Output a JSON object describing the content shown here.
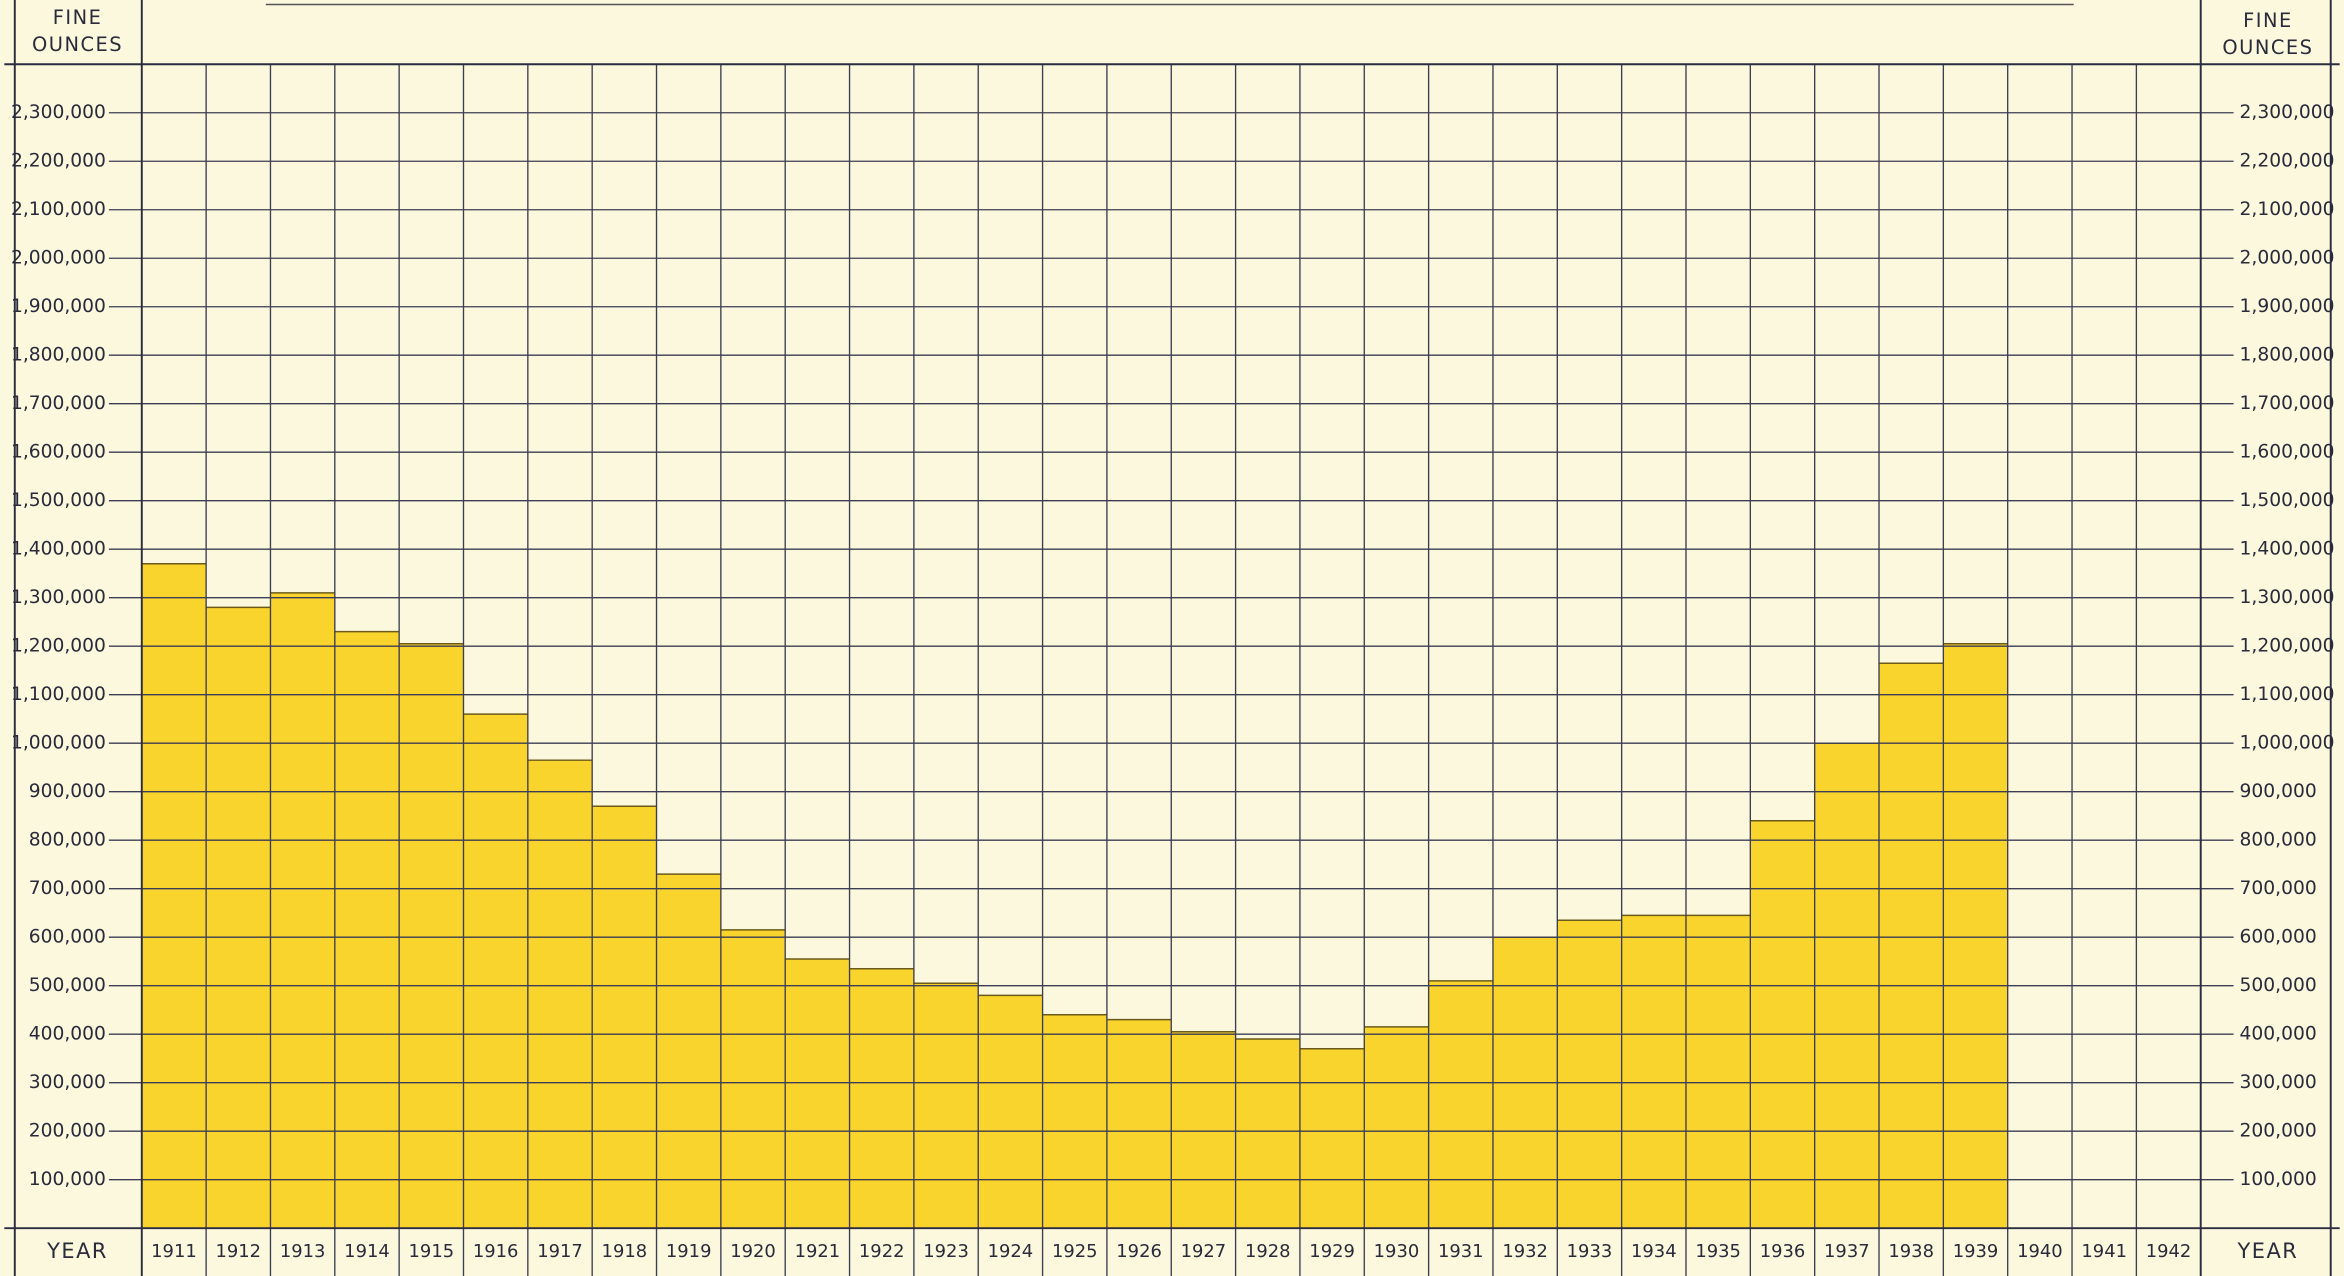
{
  "chart_data": {
    "type": "bar",
    "y_label": "FINE OUNCES",
    "x_label": "YEAR",
    "categories": [
      "1911",
      "1912",
      "1913",
      "1914",
      "1915",
      "1916",
      "1917",
      "1918",
      "1919",
      "1920",
      "1921",
      "1922",
      "1923",
      "1924",
      "1925",
      "1926",
      "1927",
      "1928",
      "1929",
      "1930",
      "1931",
      "1932",
      "1933",
      "1934",
      "1935",
      "1936",
      "1937",
      "1938",
      "1939",
      "1940",
      "1941",
      "1942"
    ],
    "values": [
      1370000,
      1280000,
      1310000,
      1230000,
      1205000,
      1060000,
      965000,
      870000,
      730000,
      615000,
      555000,
      535000,
      505000,
      480000,
      440000,
      430000,
      405000,
      390000,
      370000,
      415000,
      510000,
      600000,
      635000,
      645000,
      645000,
      840000,
      1000000,
      1165000,
      1205000,
      null,
      null,
      null
    ],
    "color": "#f8d42c",
    "ylim": [
      0,
      2400000
    ],
    "yticks": [
      {
        "value": 100000,
        "label": "100,000"
      },
      {
        "value": 200000,
        "label": "200,000"
      },
      {
        "value": 300000,
        "label": "300,000"
      },
      {
        "value": 400000,
        "label": "400,000"
      },
      {
        "value": 500000,
        "label": "500,000"
      },
      {
        "value": 600000,
        "label": "600,000"
      },
      {
        "value": 700000,
        "label": "700,000"
      },
      {
        "value": 800000,
        "label": "800,000"
      },
      {
        "value": 900000,
        "label": "900,000"
      },
      {
        "value": 1000000,
        "label": "1,000,000"
      },
      {
        "value": 1100000,
        "label": "1,100,000"
      },
      {
        "value": 1200000,
        "label": "1,200,000"
      },
      {
        "value": 1300000,
        "label": "1,300,000"
      },
      {
        "value": 1400000,
        "label": "1,400,000"
      },
      {
        "value": 1500000,
        "label": "1,500,000"
      },
      {
        "value": 1600000,
        "label": "1,600,000"
      },
      {
        "value": 1700000,
        "label": "1,700,000"
      },
      {
        "value": 1800000,
        "label": "1,800,000"
      },
      {
        "value": 1900000,
        "label": "1,900,000"
      },
      {
        "value": 2000000,
        "label": "2,000,000"
      },
      {
        "value": 2100000,
        "label": "2,100,000"
      },
      {
        "value": 2200000,
        "label": "2,200,000"
      },
      {
        "value": 2300000,
        "label": "2,300,000"
      }
    ],
    "grid": true
  }
}
